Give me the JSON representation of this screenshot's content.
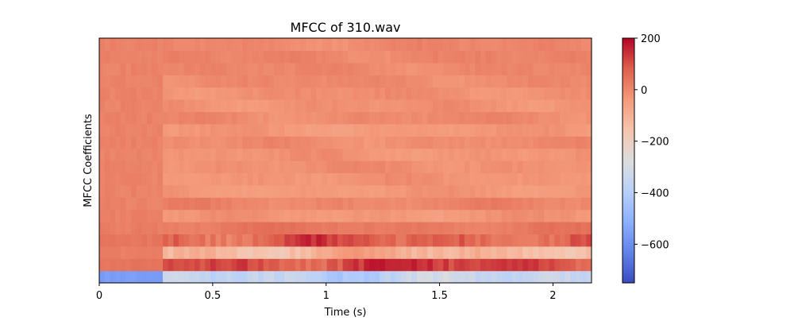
{
  "chart_data": {
    "type": "heatmap",
    "title": "MFCC of 310.wav",
    "xlabel": "Time (s)",
    "ylabel": "MFCC Coefficients",
    "xlim": [
      0,
      2.17
    ],
    "x_ticks": [
      0,
      0.5,
      1,
      1.5,
      2
    ],
    "x_tick_labels": [
      "0",
      "0.5",
      "1",
      "1.5",
      "2"
    ],
    "colorbar": {
      "colormap": "coolwarm",
      "vmin": -750,
      "vmax": 200,
      "ticks": [
        200,
        0,
        -200,
        -400,
        -600
      ],
      "tick_labels": [
        "200",
        "0",
        "−200",
        "−400",
        "−600"
      ]
    },
    "n_frames": 93,
    "coefficients": [
      {
        "index": 0,
        "base": -360,
        "pre": -560
      },
      {
        "index": 1,
        "base": 120,
        "pre": 40
      },
      {
        "index": 2,
        "base": -110,
        "pre": 20
      },
      {
        "index": 3,
        "base": 75,
        "pre": 35
      },
      {
        "index": 4,
        "base": 30,
        "pre": 20
      },
      {
        "index": 5,
        "base": -30,
        "pre": 15
      },
      {
        "index": 6,
        "base": 5,
        "pre": 10
      },
      {
        "index": 7,
        "base": -35,
        "pre": 10
      },
      {
        "index": 8,
        "base": -25,
        "pre": 10
      },
      {
        "index": 9,
        "base": -15,
        "pre": 10
      },
      {
        "index": 10,
        "base": -25,
        "pre": 10
      },
      {
        "index": 11,
        "base": -10,
        "pre": 10
      },
      {
        "index": 12,
        "base": -35,
        "pre": 10
      },
      {
        "index": 13,
        "base": -5,
        "pre": 10
      },
      {
        "index": 14,
        "base": -20,
        "pre": 10
      },
      {
        "index": 15,
        "base": -15,
        "pre": 10
      },
      {
        "index": 16,
        "base": -5,
        "pre": 10
      },
      {
        "index": 17,
        "base": 0,
        "pre": 10
      },
      {
        "index": 18,
        "base": 5,
        "pre": 10
      },
      {
        "index": 19,
        "base": 0,
        "pre": 10
      }
    ]
  }
}
